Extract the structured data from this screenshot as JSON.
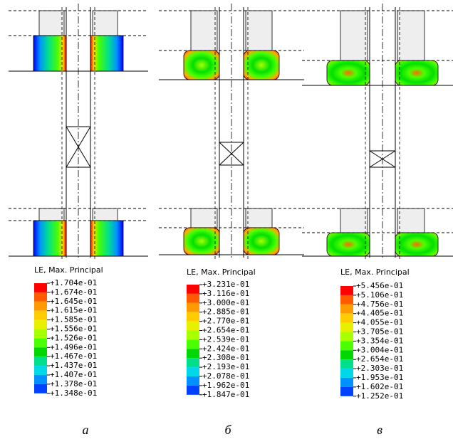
{
  "panels": [
    {
      "label": "а",
      "legend": {
        "title": "LE, Max. Principal",
        "values": [
          "+1.704e-01",
          "+1.674e-01",
          "+1.645e-01",
          "+1.615e-01",
          "+1.585e-01",
          "+1.556e-01",
          "+1.526e-01",
          "+1.496e-01",
          "+1.467e-01",
          "+1.437e-01",
          "+1.407e-01",
          "+1.378e-01",
          "+1.348e-01"
        ]
      }
    },
    {
      "label": "б",
      "legend": {
        "title": "LE, Max. Principal",
        "values": [
          "+3.231e-01",
          "+3.116e-01",
          "+3.000e-01",
          "+2.885e-01",
          "+2.770e-01",
          "+2.654e-01",
          "+2.539e-01",
          "+2.424e-01",
          "+2.308e-01",
          "+2.193e-01",
          "+2.078e-01",
          "+1.962e-01",
          "+1.847e-01"
        ]
      }
    },
    {
      "label": "в",
      "legend": {
        "title": "LE, Max. Principal",
        "values": [
          "+5.456e-01",
          "+5.106e-01",
          "+4.756e-01",
          "+4.405e-01",
          "+4.055e-01",
          "+3.705e-01",
          "+3.354e-01",
          "+3.004e-01",
          "+2.654e-01",
          "+2.303e-01",
          "+1.953e-01",
          "+1.602e-01",
          "+1.252e-01"
        ]
      }
    }
  ]
}
